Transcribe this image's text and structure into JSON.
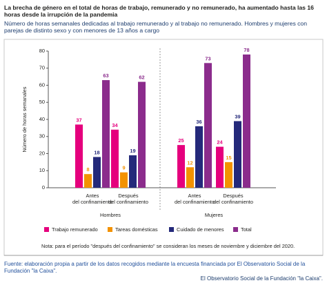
{
  "chart_data": {
    "type": "bar",
    "title": "La brecha de género en el total de horas de trabajo, remunerado y no remunerado, ha aumentado hasta las 16 horas desde la irrupción de la pandemia",
    "subtitle": "Número de horas semanales dedicadas al trabajo remunerado y al trabajo no remunerado. Hombres y mujeres con parejas de distinto sexo y con menores de 13 años a cargo",
    "ylabel": "Número de horas semanales",
    "categories": [
      [
        "Antes",
        "del confinamiento"
      ],
      [
        "Después",
        "del confinamiento"
      ],
      [
        "Antes",
        "del confinamiento"
      ],
      [
        "Después",
        "del confinamiento"
      ]
    ],
    "groups": [
      "Hombres",
      "Mujeres"
    ],
    "series": [
      {
        "name": "Trabajo remunerado",
        "color": "#e5007d",
        "values": [
          37,
          34,
          25,
          24
        ]
      },
      {
        "name": "Tareas domésticas",
        "color": "#f39200",
        "values": [
          8,
          9,
          12,
          15
        ]
      },
      {
        "name": "Cuidado de menores",
        "color": "#24297a",
        "values": [
          18,
          19,
          36,
          39
        ]
      },
      {
        "name": "Total",
        "color": "#8b2c8c",
        "values": [
          63,
          62,
          73,
          78
        ]
      }
    ],
    "ylim": [
      0,
      80
    ],
    "yticks": [
      0,
      10,
      20,
      30,
      40,
      50,
      60,
      70,
      80
    ],
    "note": "Nota: para el período \"después del confinamiento\" se consideran los meses de noviembre y diciembre del 2020.",
    "source": "Fuente: elaboración propia a partir de los datos recogidos mediante la encuesta financiada por El Observatorio Social de la Fundación \"la Caixa\".",
    "footer": "El Observatorio Social de la Fundación \"la Caixa\"."
  }
}
